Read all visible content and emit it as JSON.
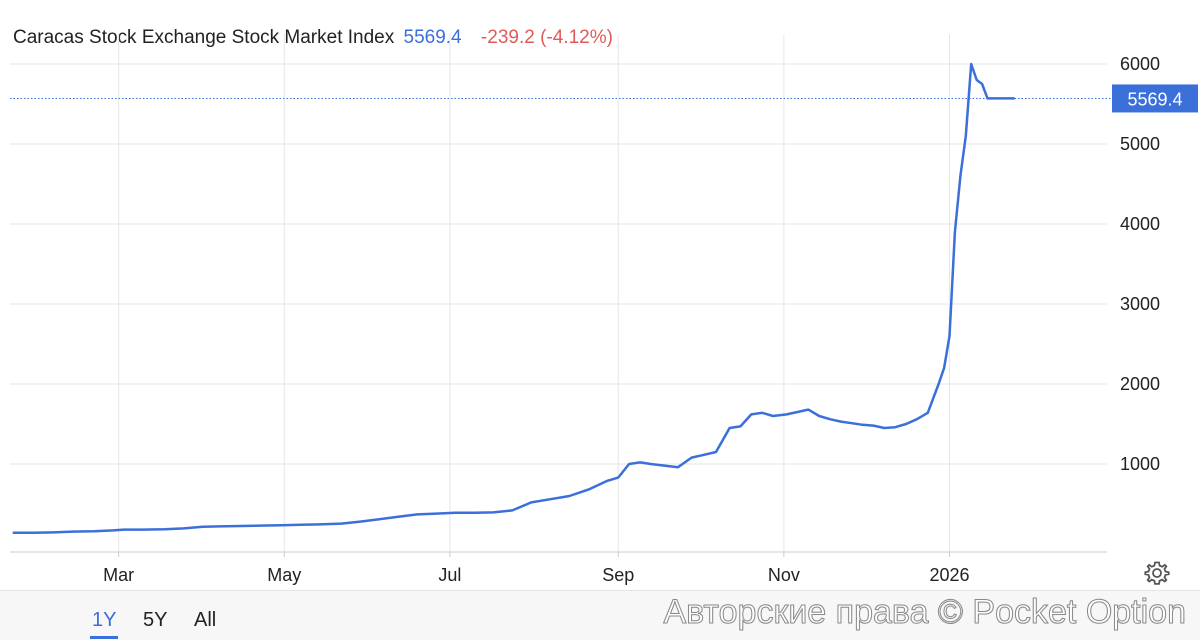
{
  "header": {
    "title": "Caracas Stock Exchange Stock Market Index",
    "price": "5569.4",
    "change": "-239.2 (-4.12%)"
  },
  "colors": {
    "line": "#3b6fd9",
    "price": "#3b6fd9",
    "negative": "#e05a5a",
    "grid": "#e6e6e6",
    "axis_text": "#222222"
  },
  "chart_data": {
    "type": "line",
    "title": "Caracas Stock Exchange Stock Market Index",
    "xlabel": "",
    "ylabel": "",
    "x_tick_labels": [
      "Mar",
      "May",
      "Jul",
      "Sep",
      "Nov",
      "2026"
    ],
    "x_tick_dates": [
      "2025-03-01",
      "2025-05-01",
      "2025-07-01",
      "2025-09-01",
      "2025-11-01",
      "2026-01-01"
    ],
    "xlim": [
      "2025-01-20",
      "2026-02-28"
    ],
    "ylim": [
      -100,
      6300
    ],
    "yticks": [
      1000,
      2000,
      3000,
      4000,
      5000,
      6000
    ],
    "y_tick_labels": [
      "1000",
      "2000",
      "3000",
      "4000",
      "5000",
      "6000"
    ],
    "grid": true,
    "last_value": 5569.4,
    "last_value_label": "5569.4",
    "series": [
      {
        "x": [
          "2025-01-21",
          "2025-01-29",
          "2025-02-05",
          "2025-02-12",
          "2025-02-20",
          "2025-02-27",
          "2025-03-03",
          "2025-03-10",
          "2025-03-18",
          "2025-03-25",
          "2025-04-01",
          "2025-04-07",
          "2025-04-15",
          "2025-04-22",
          "2025-04-30",
          "2025-05-07",
          "2025-05-14",
          "2025-05-22",
          "2025-05-29",
          "2025-06-05",
          "2025-06-12",
          "2025-06-19",
          "2025-06-26",
          "2025-07-03",
          "2025-07-10",
          "2025-07-17",
          "2025-07-24",
          "2025-07-31",
          "2025-08-07",
          "2025-08-14",
          "2025-08-21",
          "2025-08-28",
          "2025-09-01",
          "2025-09-05",
          "2025-09-09",
          "2025-09-13",
          "2025-09-18",
          "2025-09-23",
          "2025-09-28",
          "2025-10-02",
          "2025-10-07",
          "2025-10-12",
          "2025-10-16",
          "2025-10-20",
          "2025-10-24",
          "2025-10-28",
          "2025-11-02",
          "2025-11-06",
          "2025-11-10",
          "2025-11-14",
          "2025-11-18",
          "2025-11-22",
          "2025-11-26",
          "2025-11-30",
          "2025-12-04",
          "2025-12-08",
          "2025-12-12",
          "2025-12-16",
          "2025-12-20",
          "2025-12-24",
          "2025-12-28",
          "2025-12-30",
          "2026-01-01",
          "2026-01-03",
          "2026-01-05",
          "2026-01-07",
          "2026-01-09",
          "2026-01-11",
          "2026-01-13",
          "2026-01-15",
          "2026-01-17",
          "2026-01-19",
          "2026-01-21",
          "2026-01-23",
          "2026-01-25"
        ],
        "values": [
          140,
          140,
          145,
          155,
          160,
          170,
          180,
          180,
          185,
          195,
          215,
          220,
          225,
          230,
          235,
          240,
          245,
          255,
          280,
          310,
          340,
          370,
          380,
          390,
          390,
          395,
          420,
          520,
          560,
          600,
          680,
          790,
          830,
          1000,
          1020,
          1000,
          980,
          960,
          1080,
          1110,
          1150,
          1450,
          1470,
          1620,
          1640,
          1600,
          1620,
          1650,
          1680,
          1600,
          1560,
          1530,
          1510,
          1490,
          1480,
          1450,
          1460,
          1500,
          1560,
          1640,
          2000,
          2200,
          2600,
          3900,
          4600,
          5100,
          6000,
          5800,
          5750,
          5569.4,
          5569.4,
          5569.4,
          5569.4,
          5569.4,
          5569.4
        ]
      }
    ]
  },
  "range_tabs": [
    {
      "label": "1Y",
      "active": true
    },
    {
      "label": "5Y",
      "active": false
    },
    {
      "label": "All",
      "active": false
    }
  ],
  "settings_icon": "gear-icon",
  "watermark": "Авторские права © Pocket Option"
}
